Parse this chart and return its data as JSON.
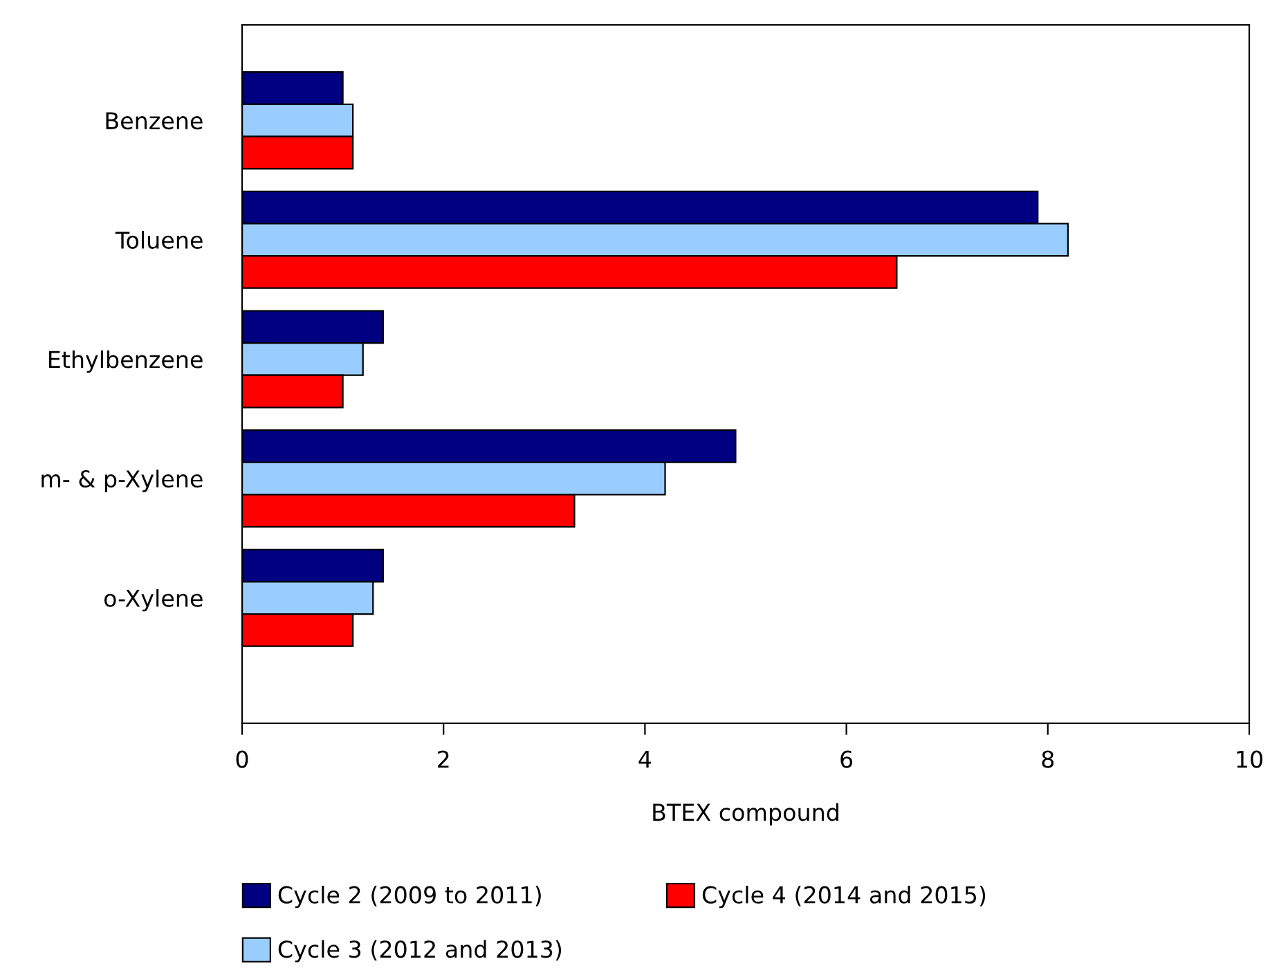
{
  "chart_data": {
    "type": "bar",
    "orientation": "horizontal",
    "xlabel": "BTEX compound",
    "categories": [
      "Benzene",
      "Toluene",
      "Ethylbenzene",
      "m- & p-Xylene",
      "o-Xylene"
    ],
    "series": [
      {
        "name": "Cycle 2 (2009 to 2011)",
        "color": "#000080",
        "values": [
          1.0,
          7.9,
          1.4,
          4.9,
          1.4
        ]
      },
      {
        "name": "Cycle 3 (2012 and 2013)",
        "color": "#99ccff",
        "values": [
          1.1,
          8.2,
          1.2,
          4.2,
          1.3
        ]
      },
      {
        "name": "Cycle 4 (2014 and 2015)",
        "color": "#ff0000",
        "values": [
          1.1,
          6.5,
          1.0,
          3.3,
          1.1
        ]
      }
    ],
    "xlim": [
      0,
      10
    ],
    "xticks": [
      0,
      2,
      4,
      6,
      8,
      10
    ],
    "grid": false,
    "legend": "bottom"
  }
}
